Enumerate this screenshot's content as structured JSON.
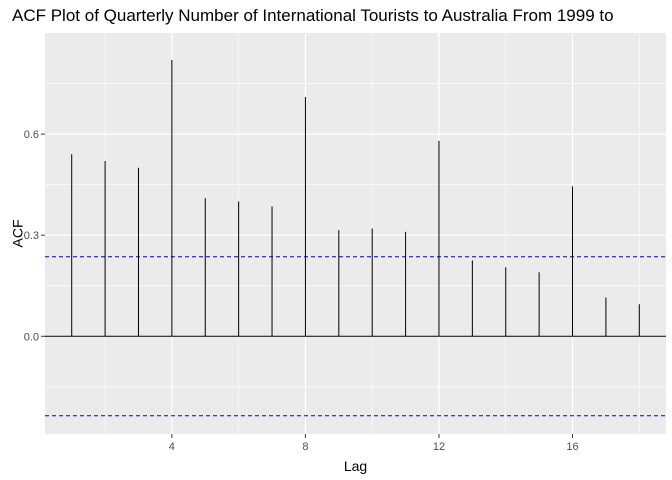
{
  "chart_data": {
    "type": "bar",
    "title": "ACF Plot of Quarterly Number of International Tourists to Australia From 1999 to",
    "xlabel": "Lag",
    "ylabel": "ACF",
    "x": [
      1,
      2,
      3,
      4,
      5,
      6,
      7,
      8,
      9,
      10,
      11,
      12,
      13,
      14,
      15,
      16,
      17,
      18
    ],
    "values": [
      0.54,
      0.52,
      0.5,
      0.82,
      0.41,
      0.4,
      0.385,
      0.71,
      0.315,
      0.32,
      0.31,
      0.58,
      0.225,
      0.205,
      0.19,
      0.445,
      0.115,
      0.095
    ],
    "xlim": [
      0.2,
      18.8
    ],
    "ylim": [
      -0.29,
      0.9
    ],
    "x_ticks": [
      4,
      8,
      12,
      16
    ],
    "x_tick_labels": [
      "4",
      "8",
      "12",
      "16"
    ],
    "y_ticks": [
      0.0,
      0.3,
      0.6
    ],
    "y_tick_labels": [
      "0.0",
      "0.3",
      "0.6"
    ],
    "confidence_bounds": [
      0.236,
      -0.236
    ],
    "grid": true,
    "legend": "none",
    "colors": {
      "panel": "#ebebeb",
      "grid": "#ffffff",
      "spike": "#000000",
      "zero_line": "#000000",
      "confidence_line": "#0000cc"
    }
  }
}
